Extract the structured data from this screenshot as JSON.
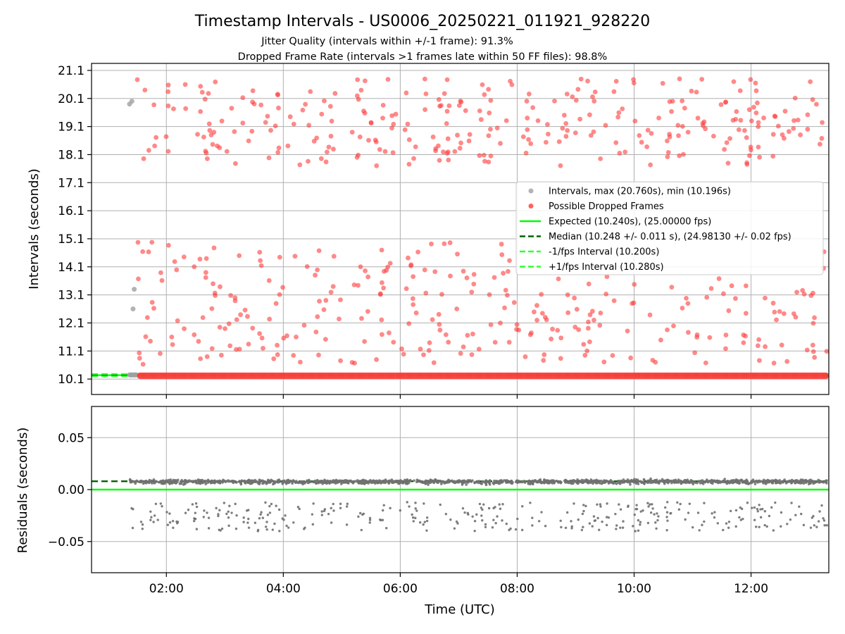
{
  "chart_data": [
    {
      "panel": "intervals",
      "type": "scatter",
      "title": "Timestamp Intervals - US0006_20250221_011921_928220",
      "subtitle_lines": [
        "Jitter Quality (intervals within +/-1 frame): 91.3%",
        "Dropped Frame Rate (intervals >1 frames late within 50 FF files): 98.8%"
      ],
      "xlabel": "",
      "ylabel": "Intervals (seconds)",
      "x_unit": "hours UTC",
      "xlim": [
        0.72,
        13.33
      ],
      "ylim": [
        9.55,
        21.35
      ],
      "yticks": [
        10.1,
        11.1,
        12.1,
        13.1,
        14.1,
        15.1,
        16.1,
        17.1,
        18.1,
        19.1,
        20.1,
        21.1
      ],
      "ytick_labels": [
        "10.1",
        "11.1",
        "12.1",
        "13.1",
        "14.1",
        "15.1",
        "16.1",
        "17.1",
        "18.1",
        "19.1",
        "20.1",
        "21.1"
      ],
      "grid": true,
      "legend_position": "center-right",
      "legend": [
        {
          "label": "Intervals, max (20.760s), min (10.196s)",
          "marker": "dot",
          "color": "#a0a0a0"
        },
        {
          "label": "Possible Dropped Frames",
          "marker": "dot",
          "color": "#ff3a3a"
        },
        {
          "label": "Expected (10.240s), (25.00000 fps)",
          "marker": "line",
          "color": "#00ff00"
        },
        {
          "label": "Median (10.248 +/- 0.011 s), (24.98130 +/- 0.02 fps)",
          "marker": "dash",
          "color": "#006400"
        },
        {
          "label": "-1/fps Interval (10.200s)",
          "marker": "dash",
          "color": "#32ff32"
        },
        {
          "label": "+1/fps Interval (10.280s)",
          "marker": "dash",
          "color": "#32ff32"
        }
      ],
      "series": [
        {
          "name": "Intervals, max (20.760s), min (10.196s)",
          "role": "normal",
          "x_range": [
            1.37,
            1.5
          ],
          "y_baseline": 10.248,
          "outliers": [
            [
              1.37,
              19.9
            ],
            [
              1.41,
              20.0
            ],
            [
              1.43,
              12.6
            ],
            [
              1.45,
              13.3
            ]
          ]
        },
        {
          "name": "Possible Dropped Frames",
          "role": "dropped",
          "baseline_band": {
            "x_range": [
              1.5,
              13.33
            ],
            "y": 10.22
          }
        },
        {
          "name": "Expected (10.240s), (25.00000 fps)",
          "y": 10.24
        },
        {
          "name": "Median (10.248 +/- 0.011 s), (24.98130 +/- 0.02 fps)",
          "y": 10.248
        },
        {
          "name": "-1/fps Interval (10.200s)",
          "y": 10.2
        },
        {
          "name": "+1/fps Interval (10.280s)",
          "y": 10.28
        }
      ]
    },
    {
      "panel": "residuals",
      "type": "scatter",
      "xlabel": "Time (UTC)",
      "ylabel": "Residuals (seconds)",
      "x_unit": "hours UTC",
      "xlim": [
        0.72,
        13.33
      ],
      "ylim": [
        -0.08,
        0.08
      ],
      "yticks": [
        0.05,
        0.0,
        -0.05
      ],
      "ytick_labels": [
        "0.05",
        "0.00",
        "−0.05"
      ],
      "xticks": [
        2,
        4,
        6,
        8,
        10,
        12
      ],
      "xtick_labels": [
        "02:00",
        "04:00",
        "06:00",
        "08:00",
        "10:00",
        "12:00"
      ],
      "grid": true,
      "series": [
        {
          "name": "residuals",
          "x_range": [
            1.37,
            13.33
          ],
          "cluster_mean": 0.0075,
          "cluster_spread": 0.0022,
          "low_band": [
            -0.04,
            -0.012
          ]
        },
        {
          "name": "median offset",
          "y": 0.008
        },
        {
          "name": "zero",
          "y": 0.0
        }
      ]
    }
  ],
  "colors": {
    "normal": "#a0a0a0",
    "dropped": "#ff3a3a",
    "expected": "#00ff00",
    "median": "#006400",
    "fps_bound": "#32ff32",
    "residual": "#707070",
    "grid": "#b0b0b0"
  }
}
